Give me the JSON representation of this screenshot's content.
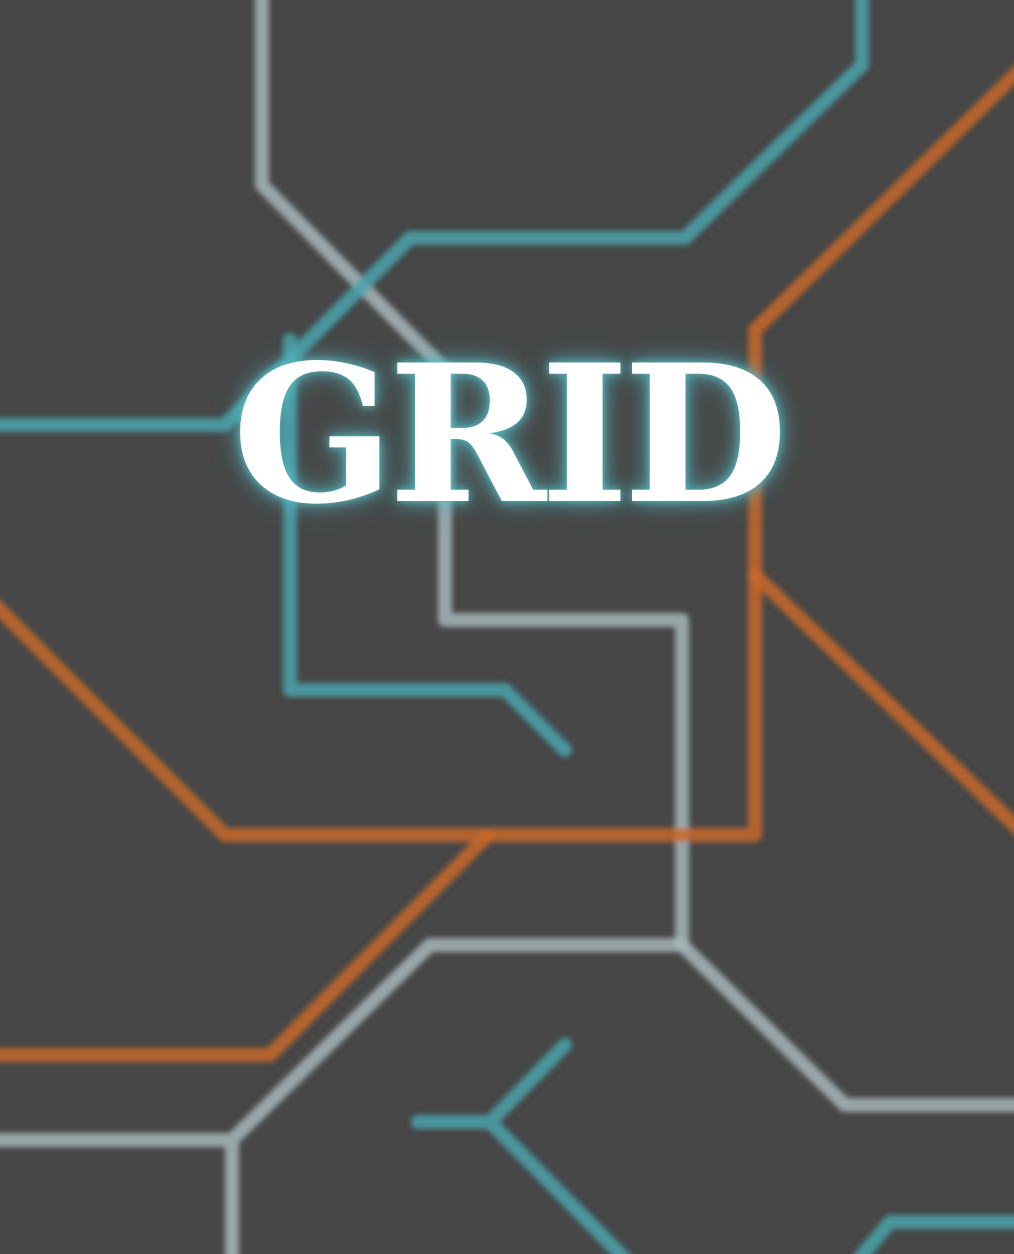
{
  "title": "GRID",
  "colors": {
    "background": "#474747",
    "teal": "#4aa3ad",
    "orange": "#c8692a",
    "grey": "#a7b7b8",
    "text": "#ffffff",
    "glow": "#58bec8"
  }
}
